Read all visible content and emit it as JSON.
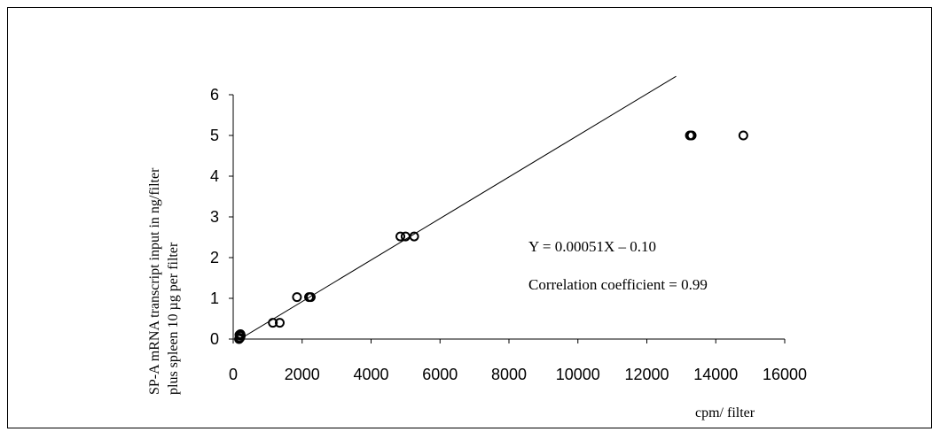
{
  "chart_data": {
    "type": "scatter",
    "title": "",
    "xlabel": "cpm/ filter",
    "ylabel_lines": [
      "SP-A  mRNA transcript input in ng/filter",
      "plus spleen 10 µg per filter"
    ],
    "xlim": [
      0,
      16000
    ],
    "ylim": [
      0,
      6
    ],
    "x_ticks": [
      0,
      2000,
      4000,
      6000,
      8000,
      10000,
      12000,
      14000,
      16000
    ],
    "y_ticks": [
      0,
      1,
      2,
      3,
      4,
      5,
      6
    ],
    "grid": false,
    "series": [
      {
        "marker": "open-circle",
        "color": "#000000",
        "points": [
          {
            "x": 170,
            "y": 0.0
          },
          {
            "x": 200,
            "y": 0.03
          },
          {
            "x": 180,
            "y": 0.1
          },
          {
            "x": 210,
            "y": 0.12
          },
          {
            "x": 220,
            "y": 0.08
          },
          {
            "x": 1150,
            "y": 0.4
          },
          {
            "x": 1350,
            "y": 0.4
          },
          {
            "x": 1850,
            "y": 1.03
          },
          {
            "x": 2200,
            "y": 1.03
          },
          {
            "x": 2250,
            "y": 1.03
          },
          {
            "x": 4850,
            "y": 2.52
          },
          {
            "x": 5000,
            "y": 2.52
          },
          {
            "x": 5250,
            "y": 2.52
          },
          {
            "x": 13250,
            "y": 5.0
          },
          {
            "x": 13300,
            "y": 5.0
          },
          {
            "x": 14800,
            "y": 5.0
          }
        ]
      }
    ],
    "fit_line": {
      "slope": 0.00051,
      "intercept": -0.1,
      "x_range": [
        200,
        12850
      ],
      "color": "#000000"
    },
    "annotations": [
      "Y = 0.00051X – 0.10",
      "Correlation coefficient = 0.99"
    ]
  }
}
